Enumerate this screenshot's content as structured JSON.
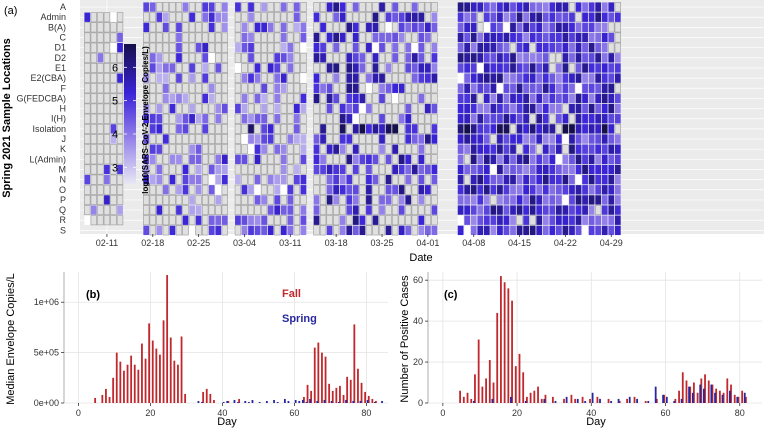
{
  "chart_data": [
    {
      "type": "heatmap",
      "panel_label": "(a)",
      "xlabel": "Date",
      "ylabel": "Spring 2021 Sample Locations",
      "locations": [
        "A",
        "Admin",
        "B(A)",
        "C",
        "D1",
        "D2",
        "E1",
        "E2(CBA)",
        "F",
        "G(FEDCBA)",
        "H",
        "I(H)",
        "Isolation",
        "J",
        "K",
        "L(Admin)",
        "M",
        "N",
        "O",
        "P",
        "Q",
        "R",
        "S"
      ],
      "x_ticks": [
        "02-11",
        "02-18",
        "02-25",
        "03-04",
        "03-11",
        "03-18",
        "03-25",
        "04-01",
        "04-08",
        "04-15",
        "04-22",
        "04-29"
      ],
      "colorbar_title": "log10(SARS-CoV-2 Envelope Copies/L)",
      "colorbar_ticks": [
        "3",
        "4",
        "5",
        "6"
      ],
      "color_range": [
        2.5,
        6.7
      ],
      "colors": {
        "low": "#e8e8f4",
        "high": "#16104a",
        "missing": "#e0e0e0",
        "cell_border": "#9a9a9a"
      },
      "date_blocks": [
        {
          "start": "02-08",
          "end": "02-13",
          "present_locations": [
            1,
            2,
            3,
            4,
            5,
            6,
            7,
            8,
            9,
            10,
            11,
            12,
            13,
            14,
            15,
            16,
            17,
            18,
            19,
            20,
            21
          ]
        },
        {
          "start": "02-17",
          "end": "03-01"
        },
        {
          "start": "03-03",
          "end": "03-13"
        },
        {
          "start": "03-15",
          "end": "04-02"
        },
        {
          "start": "04-06",
          "end": "04-30"
        }
      ]
    },
    {
      "type": "bar",
      "panel_label": "(b)",
      "xlabel": "Day",
      "ylabel": "Median Envelope Copies/L",
      "xlim": [
        -4,
        86
      ],
      "ylim": [
        0,
        1300000
      ],
      "x_ticks": [
        0,
        20,
        40,
        60,
        80
      ],
      "y_ticks": [
        0,
        500000,
        1000000
      ],
      "y_tick_labels": [
        "0e+00",
        "5e+05",
        "1e+06"
      ],
      "legend": [
        "Fall",
        "Spring"
      ],
      "legend_position": "top-center",
      "series": [
        {
          "name": "Fall",
          "color": "#c0282d",
          "x": [
            5,
            7,
            8,
            9,
            10,
            11,
            12,
            13,
            14,
            15,
            16,
            17,
            18,
            19,
            20,
            21,
            22,
            23,
            24,
            25,
            26,
            27,
            28,
            29,
            30,
            35,
            36,
            37,
            38,
            42,
            45,
            63,
            64,
            65,
            66,
            67,
            68,
            69,
            70,
            71,
            72,
            73,
            74,
            75,
            76,
            77,
            78,
            79,
            80,
            81,
            82,
            83
          ],
          "values": [
            50000,
            80000,
            140000,
            60000,
            250000,
            500000,
            410000,
            320000,
            380000,
            470000,
            380000,
            330000,
            590000,
            440000,
            790000,
            620000,
            540000,
            480000,
            820000,
            1270000,
            650000,
            420000,
            380000,
            660000,
            90000,
            110000,
            140000,
            90000,
            30000,
            20000,
            40000,
            60000,
            180000,
            120000,
            550000,
            600000,
            500000,
            460000,
            190000,
            120000,
            150000,
            170000,
            80000,
            260000,
            230000,
            780000,
            340000,
            200000,
            110000,
            70000,
            40000,
            20000
          ]
        },
        {
          "name": "Spring",
          "color": "#27279e",
          "x": [
            33,
            34,
            40,
            41,
            43,
            44,
            46,
            47,
            48,
            50,
            52,
            54,
            55,
            57,
            58,
            60,
            61,
            62,
            63,
            64,
            66,
            68,
            70,
            72,
            74,
            76,
            78,
            80,
            82,
            84
          ],
          "values": [
            20000,
            10000,
            10000,
            20000,
            30000,
            10000,
            20000,
            10000,
            30000,
            10000,
            20000,
            30000,
            10000,
            40000,
            20000,
            30000,
            20000,
            30000,
            10000,
            40000,
            20000,
            30000,
            20000,
            10000,
            30000,
            20000,
            20000,
            30000,
            10000,
            20000
          ]
        }
      ]
    },
    {
      "type": "bar",
      "panel_label": "(c)",
      "xlabel": "Day",
      "ylabel": "Number of Positive Cases",
      "xlim": [
        -4,
        86
      ],
      "ylim": [
        0,
        64
      ],
      "x_ticks": [
        0,
        20,
        40,
        60,
        80
      ],
      "y_ticks": [
        0,
        20,
        40,
        60
      ],
      "series": [
        {
          "name": "Fall",
          "color": "#c0282d",
          "x": [
            5,
            6,
            7,
            8,
            9,
            10,
            11,
            12,
            13,
            14,
            15,
            16,
            17,
            18,
            19,
            20,
            21,
            22,
            23,
            24,
            25,
            26,
            27,
            28,
            30,
            33,
            35,
            36,
            38,
            40,
            42,
            45,
            48,
            50,
            52,
            55,
            58,
            60,
            63,
            64,
            65,
            66,
            67,
            68,
            69,
            70,
            71,
            72,
            73,
            74,
            75,
            76,
            77,
            78,
            79,
            80,
            81,
            82
          ],
          "values": [
            6,
            3,
            5,
            2,
            14,
            31,
            8,
            12,
            21,
            10,
            44,
            62,
            59,
            56,
            50,
            18,
            24,
            15,
            3,
            5,
            6,
            8,
            2,
            4,
            3,
            2,
            4,
            2,
            3,
            2,
            3,
            2,
            1,
            2,
            3,
            1,
            2,
            4,
            2,
            6,
            15,
            11,
            8,
            10,
            5,
            12,
            14,
            11,
            9,
            7,
            6,
            5,
            12,
            9,
            4,
            3,
            6,
            3
          ]
        },
        {
          "name": "Spring",
          "color": "#27279e",
          "x": [
            8,
            13,
            18,
            22,
            27,
            30,
            33,
            36,
            38,
            40,
            42,
            45,
            47,
            50,
            52,
            55,
            57,
            59,
            60,
            62,
            64,
            66,
            67,
            69,
            70,
            72,
            73,
            75,
            77,
            79,
            81
          ],
          "values": [
            1,
            2,
            3,
            1,
            2,
            1,
            3,
            2,
            1,
            5,
            2,
            1,
            2,
            3,
            2,
            1,
            8,
            4,
            3,
            1,
            2,
            8,
            5,
            9,
            7,
            9,
            5,
            4,
            6,
            3,
            5
          ]
        }
      ]
    }
  ]
}
